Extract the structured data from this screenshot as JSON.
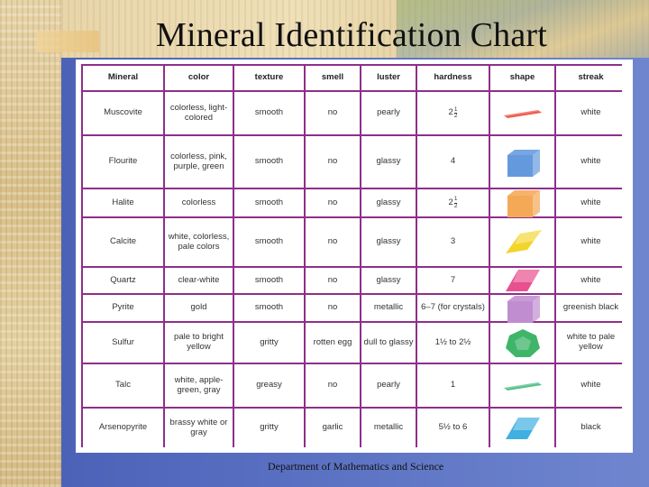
{
  "title": "Mineral Identification Chart",
  "footer": "Department of Mathematics and Science",
  "colors": {
    "grid": "#8e2f8a",
    "background_blue": "#5d74c4"
  },
  "table": {
    "headers": [
      "Mineral",
      "color",
      "texture",
      "smell",
      "luster",
      "hardness",
      "shape",
      "streak"
    ],
    "rows": [
      {
        "mineral": "Muscovite",
        "color": "colorless, light-colored",
        "texture": "smooth",
        "smell": "no",
        "luster": "pearly",
        "hardness_whole": "2",
        "hardness_num": "1",
        "hardness_den": "2",
        "hardness_text": "",
        "shape_icon": "red-flat-sheet-icon",
        "shape_color": "#ef5a4a",
        "streak": "white"
      },
      {
        "mineral": "Flourite",
        "color": "colorless, pink, purple, green",
        "texture": "smooth",
        "smell": "no",
        "luster": "glassy",
        "hardness_whole": "",
        "hardness_num": "",
        "hardness_den": "",
        "hardness_text": "4",
        "shape_icon": "blue-cube-icon",
        "shape_color": "#4a88d8",
        "streak": "white"
      },
      {
        "mineral": "Halite",
        "color": "colorless",
        "texture": "smooth",
        "smell": "no",
        "luster": "glassy",
        "hardness_whole": "2",
        "hardness_num": "1",
        "hardness_den": "2",
        "hardness_text": "",
        "shape_icon": "orange-cube-icon",
        "shape_color": "#f29a3a",
        "streak": "white"
      },
      {
        "mineral": "Calcite",
        "color": "white, colorless, pale colors",
        "texture": "smooth",
        "smell": "no",
        "luster": "glassy",
        "hardness_whole": "",
        "hardness_num": "",
        "hardness_den": "",
        "hardness_text": "3",
        "shape_icon": "yellow-rhombohedron-icon",
        "shape_color": "#f3d42a",
        "streak": "white"
      },
      {
        "mineral": "Quartz",
        "color": "clear-white",
        "texture": "smooth",
        "smell": "no",
        "luster": "glassy",
        "hardness_whole": "",
        "hardness_num": "",
        "hardness_den": "",
        "hardness_text": "7",
        "shape_icon": "pink-prism-icon",
        "shape_color": "#e8508e",
        "streak": "white"
      },
      {
        "mineral": "Pyrite",
        "color": "gold",
        "texture": "smooth",
        "smell": "no",
        "luster": "metallic",
        "hardness_whole": "",
        "hardness_num": "",
        "hardness_den": "",
        "hardness_text": "6–7 (for crystals)",
        "shape_icon": "purple-cube-icon",
        "shape_color": "#b679c9",
        "streak": "greenish black"
      },
      {
        "mineral": "Sulfur",
        "color": "pale to bright yellow",
        "texture": "gritty",
        "smell": "rotten egg",
        "luster": "dull to glassy",
        "hardness_whole": "",
        "hardness_num": "",
        "hardness_den": "",
        "hardness_text": "1½  to  2½",
        "shape_icon": "green-dodecahedron-icon",
        "shape_color": "#3fb56a",
        "streak": "white to pale yellow"
      },
      {
        "mineral": "Talc",
        "color": "white, apple-green, gray",
        "texture": "greasy",
        "smell": "no",
        "luster": "pearly",
        "hardness_whole": "",
        "hardness_num": "",
        "hardness_den": "",
        "hardness_text": "1",
        "shape_icon": "green-flat-sheet-icon",
        "shape_color": "#56c08a",
        "streak": "white"
      },
      {
        "mineral": "Arsenopyrite",
        "color": "brassy white or gray",
        "texture": "gritty",
        "smell": "garlic",
        "luster": "metallic",
        "hardness_whole": "",
        "hardness_num": "",
        "hardness_den": "",
        "hardness_text": "5½  to  6",
        "shape_icon": "light-blue-prism-icon",
        "shape_color": "#3fb0e0",
        "streak": "black"
      }
    ]
  }
}
